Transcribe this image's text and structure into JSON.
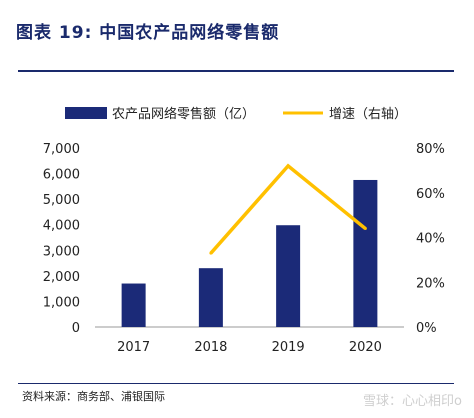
{
  "header": {
    "title": "图表 19: 中国农产品网络零售额"
  },
  "footer": {
    "source": "资料来源：商务部、浦银国际",
    "watermark": "雪球：心心相印o"
  },
  "chart_data": {
    "type": "bar",
    "categories": [
      "2017",
      "2018",
      "2019",
      "2020"
    ],
    "series": [
      {
        "name": "农产品网络零售额（亿）",
        "type": "bar",
        "axis": "left",
        "values": [
          1700,
          2300,
          3980,
          5750
        ]
      },
      {
        "name": "增速（右轴）",
        "type": "line",
        "axis": "right",
        "values": [
          null,
          33,
          72,
          44
        ]
      }
    ],
    "left_axis": {
      "ticks": [
        "0",
        "1,000",
        "2,000",
        "3,000",
        "4,000",
        "5,000",
        "6,000",
        "7,000"
      ],
      "range": [
        0,
        7000
      ]
    },
    "right_axis": {
      "ticks": [
        "0%",
        "20%",
        "40%",
        "60%",
        "80%"
      ],
      "range": [
        0,
        80
      ]
    },
    "colors": {
      "bar": "#1b2a78",
      "line": "#ffc000",
      "axis": "#999999",
      "text": "#222222"
    },
    "grid": false,
    "legend_position": "top"
  }
}
